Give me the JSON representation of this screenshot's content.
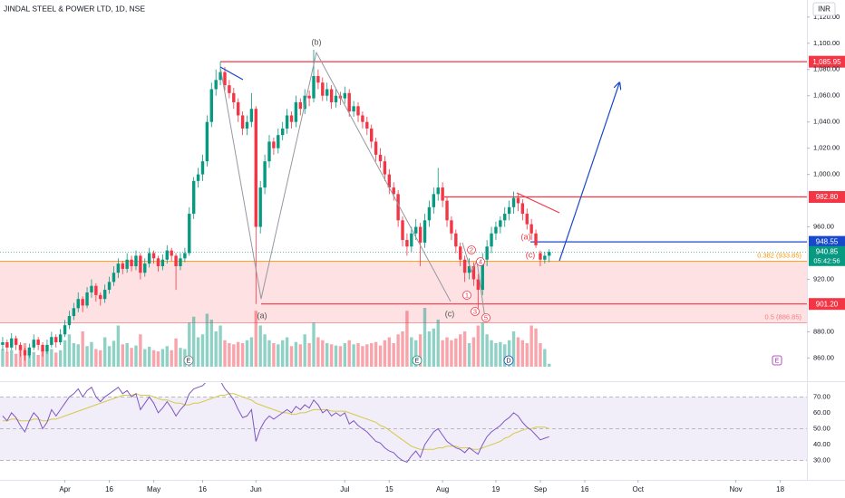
{
  "header": {
    "title": "JINDAL STEEL & POWER LTD, 1D, NSE",
    "currency": "INR"
  },
  "chart_data": {
    "type": "candlestick",
    "candles": [
      [
        870,
        876,
        866,
        872
      ],
      [
        872,
        874,
        864,
        868
      ],
      [
        868,
        879,
        866,
        875
      ],
      [
        875,
        877,
        866,
        870
      ],
      [
        870,
        872,
        861,
        866
      ],
      [
        866,
        868,
        858,
        862
      ],
      [
        862,
        871,
        860,
        868
      ],
      [
        868,
        878,
        866,
        874
      ],
      [
        874,
        876,
        866,
        870
      ],
      [
        870,
        872,
        861,
        865
      ],
      [
        865,
        874,
        863,
        870
      ],
      [
        870,
        880,
        868,
        876
      ],
      [
        876,
        878,
        868,
        872
      ],
      [
        872,
        882,
        870,
        878
      ],
      [
        878,
        889,
        876,
        885
      ],
      [
        885,
        896,
        882,
        892
      ],
      [
        892,
        902,
        889,
        898
      ],
      [
        898,
        910,
        895,
        905
      ],
      [
        905,
        907,
        895,
        900
      ],
      [
        900,
        914,
        898,
        910
      ],
      [
        910,
        920,
        906,
        915
      ],
      [
        915,
        917,
        903,
        908
      ],
      [
        908,
        910,
        900,
        905
      ],
      [
        905,
        916,
        902,
        912
      ],
      [
        912,
        922,
        909,
        918
      ],
      [
        918,
        930,
        915,
        925
      ],
      [
        925,
        936,
        921,
        932
      ],
      [
        932,
        934,
        924,
        928
      ],
      [
        928,
        940,
        925,
        935
      ],
      [
        935,
        938,
        926,
        930
      ],
      [
        930,
        942,
        927,
        938
      ],
      [
        938,
        940,
        920,
        925
      ],
      [
        925,
        936,
        922,
        932
      ],
      [
        932,
        944,
        929,
        940
      ],
      [
        940,
        942,
        932,
        936
      ],
      [
        936,
        938,
        926,
        930
      ],
      [
        930,
        939,
        927,
        935
      ],
      [
        935,
        946,
        932,
        942
      ],
      [
        942,
        944,
        934,
        938
      ],
      [
        938,
        940,
        912,
        930
      ],
      [
        930,
        940,
        927,
        936
      ],
      [
        936,
        944,
        933,
        940
      ],
      [
        940,
        975,
        938,
        970
      ],
      [
        970,
        998,
        966,
        995
      ],
      [
        995,
        1005,
        990,
        1000
      ],
      [
        1000,
        1015,
        995,
        1010
      ],
      [
        1010,
        1045,
        1006,
        1040
      ],
      [
        1040,
        1070,
        1036,
        1065
      ],
      [
        1065,
        1080,
        1060,
        1072
      ],
      [
        1072,
        1085.95,
        1068,
        1078
      ],
      [
        1078,
        1082,
        1064,
        1068
      ],
      [
        1068,
        1072,
        1058,
        1062
      ],
      [
        1062,
        1066,
        1050,
        1055
      ],
      [
        1055,
        1058,
        1040,
        1045
      ],
      [
        1045,
        1048,
        1030,
        1035
      ],
      [
        1035,
        1045,
        1030,
        1040
      ],
      [
        1040,
        1062,
        1036,
        1050
      ],
      [
        1050,
        1052,
        901.2,
        960
      ],
      [
        960,
        995,
        955,
        990
      ],
      [
        990,
        1015,
        985,
        1010
      ],
      [
        1010,
        1030,
        1005,
        1025
      ],
      [
        1025,
        1028,
        1015,
        1020
      ],
      [
        1020,
        1035,
        1016,
        1030
      ],
      [
        1030,
        1040,
        1026,
        1035
      ],
      [
        1035,
        1050,
        1031,
        1045
      ],
      [
        1045,
        1048,
        1035,
        1040
      ],
      [
        1040,
        1060,
        1036,
        1055
      ],
      [
        1055,
        1058,
        1045,
        1050
      ],
      [
        1050,
        1065,
        1046,
        1060
      ],
      [
        1060,
        1064,
        1052,
        1058
      ],
      [
        1058,
        1095,
        1055,
        1075
      ],
      [
        1075,
        1080,
        1065,
        1070
      ],
      [
        1070,
        1074,
        1056,
        1060
      ],
      [
        1060,
        1070,
        1056,
        1065
      ],
      [
        1065,
        1068,
        1050,
        1055
      ],
      [
        1055,
        1065,
        1051,
        1060
      ],
      [
        1060,
        1063,
        1053,
        1058
      ],
      [
        1058,
        1067,
        1054,
        1062
      ],
      [
        1062,
        1065,
        1044,
        1048
      ],
      [
        1048,
        1056,
        1044,
        1052
      ],
      [
        1052,
        1055,
        1040,
        1045
      ],
      [
        1045,
        1048,
        1035,
        1040
      ],
      [
        1040,
        1044,
        1030,
        1035
      ],
      [
        1035,
        1038,
        1020,
        1025
      ],
      [
        1025,
        1028,
        1010,
        1015
      ],
      [
        1015,
        1020,
        1005,
        1010
      ],
      [
        1010,
        1014,
        995,
        1000
      ],
      [
        1000,
        1004,
        985,
        990
      ],
      [
        990,
        994,
        980,
        985
      ],
      [
        985,
        988,
        960,
        965
      ],
      [
        965,
        968,
        945,
        950
      ],
      [
        950,
        955,
        938,
        945
      ],
      [
        945,
        960,
        941,
        955
      ],
      [
        955,
        966,
        950,
        960
      ],
      [
        960,
        963,
        930,
        948
      ],
      [
        948,
        970,
        944,
        965
      ],
      [
        965,
        980,
        960,
        975
      ],
      [
        975,
        990,
        970,
        985
      ],
      [
        985,
        1005,
        980,
        990
      ],
      [
        990,
        994,
        975,
        980
      ],
      [
        980,
        983,
        960,
        965
      ],
      [
        965,
        968,
        950,
        955
      ],
      [
        955,
        958,
        940,
        945
      ],
      [
        945,
        948,
        930,
        935
      ],
      [
        935,
        938,
        918,
        925
      ],
      [
        925,
        936,
        920,
        930
      ],
      [
        930,
        933,
        915,
        920
      ],
      [
        920,
        924,
        898,
        912
      ],
      [
        912,
        940,
        908,
        935
      ],
      [
        935,
        950,
        930,
        945
      ],
      [
        945,
        960,
        940,
        955
      ],
      [
        955,
        964,
        950,
        960
      ],
      [
        960,
        968,
        955,
        965
      ],
      [
        965,
        975,
        960,
        970
      ],
      [
        970,
        980,
        965,
        975
      ],
      [
        975,
        987,
        970,
        982
      ],
      [
        982,
        985,
        972,
        978
      ],
      [
        978,
        981,
        965,
        970
      ],
      [
        970,
        974,
        958,
        962
      ],
      [
        962,
        966,
        950,
        955
      ],
      [
        955,
        958,
        944,
        946
      ],
      [
        940,
        942,
        930,
        935
      ],
      [
        935,
        941,
        932,
        938
      ],
      [
        938,
        943,
        933,
        940.85
      ]
    ],
    "volume": [
      30,
      25,
      28,
      22,
      35,
      40,
      28,
      25,
      20,
      32,
      26,
      30,
      24,
      28,
      45,
      55,
      40,
      38,
      60,
      35,
      42,
      30,
      28,
      50,
      35,
      44,
      70,
      38,
      40,
      32,
      36,
      55,
      30,
      34,
      28,
      26,
      30,
      35,
      28,
      48,
      32,
      30,
      75,
      85,
      50,
      55,
      90,
      80,
      60,
      70,
      45,
      40,
      38,
      42,
      40,
      45,
      50,
      95,
      70,
      55,
      45,
      40,
      38,
      45,
      50,
      35,
      42,
      38,
      55,
      40,
      75,
      50,
      45,
      40,
      38,
      36,
      35,
      40,
      45,
      38,
      40,
      35,
      38,
      40,
      42,
      36,
      45,
      50,
      40,
      55,
      60,
      95,
      50,
      45,
      55,
      100,
      60,
      65,
      80,
      45,
      50,
      45,
      48,
      55,
      60,
      40,
      50,
      70,
      75,
      55,
      45,
      40,
      42,
      38,
      45,
      60,
      50,
      45,
      40,
      70,
      65,
      40,
      30,
      5
    ],
    "colors": {
      "up": "#089981",
      "down": "#f23645"
    },
    "ylim": [
      843,
      1133
    ],
    "yticks": [
      {
        "value": 860,
        "label": "860.00"
      },
      {
        "value": 880,
        "label": "880.00"
      },
      {
        "value": 920,
        "label": "920.00"
      },
      {
        "value": 960,
        "label": "960.00"
      },
      {
        "value": 1000,
        "label": "1,000.00"
      },
      {
        "value": 1020,
        "label": "1,020.00"
      },
      {
        "value": 1040,
        "label": "1,040.00"
      },
      {
        "value": 1060,
        "label": "1,060.00"
      },
      {
        "value": 1080,
        "label": "1,080.00"
      },
      {
        "value": 1100,
        "label": "1,100.00"
      },
      {
        "value": 1120,
        "label": "1,120.00"
      }
    ],
    "xlim": [
      -0.6,
      181
    ],
    "xticks": [
      {
        "value": 14,
        "label": "Apr"
      },
      {
        "value": 24,
        "label": "16"
      },
      {
        "value": 34,
        "label": "May"
      },
      {
        "value": 45,
        "label": "16"
      },
      {
        "value": 57,
        "label": "Jun"
      },
      {
        "value": 77,
        "label": "Jul"
      },
      {
        "value": 87,
        "label": "15"
      },
      {
        "value": 99,
        "label": "Aug"
      },
      {
        "value": 111,
        "label": "19"
      },
      {
        "value": 121,
        "label": "Sep"
      },
      {
        "value": 131,
        "label": "16"
      },
      {
        "value": 143,
        "label": "Oct"
      },
      {
        "value": 165,
        "label": "Nov"
      },
      {
        "value": 175,
        "label": "18"
      }
    ],
    "levels": [
      {
        "value": 1085.95,
        "label": "1,085.95",
        "color": "#f23645"
      },
      {
        "value": 982.8,
        "label": "982.80",
        "color": "#f23645"
      },
      {
        "value": 948.55,
        "color": "#1848cc"
      },
      {
        "value": 901.2,
        "label": "901.20",
        "color": "#f23645"
      }
    ],
    "fib": [
      {
        "value": 933.85,
        "label": "0.382 (933.85)",
        "color": "#ff9800"
      },
      {
        "value": 886.85,
        "label": "0.5 (886.85)",
        "color": "#f77c80"
      }
    ],
    "last": {
      "value": 940.85,
      "countdown": "05:42:56",
      "color": "#089981"
    },
    "annotations": [
      "(b)",
      "(a)",
      "(c)",
      "(a)",
      "(c)",
      "1",
      "2",
      "3",
      "4",
      "5"
    ],
    "events": [
      "E",
      "E",
      "D",
      "E"
    ]
  },
  "rsi": {
    "type": "line",
    "values": [
      58,
      55,
      60,
      57,
      52,
      48,
      55,
      60,
      57,
      50,
      54,
      62,
      58,
      62,
      66,
      70,
      72,
      75,
      70,
      74,
      76,
      70,
      67,
      70,
      72,
      74,
      76,
      72,
      74,
      70,
      72,
      62,
      66,
      70,
      66,
      60,
      63,
      67,
      63,
      58,
      62,
      65,
      72,
      75,
      76,
      77,
      80,
      82,
      82,
      80,
      75,
      72,
      68,
      62,
      57,
      58,
      62,
      42,
      50,
      55,
      58,
      56,
      58,
      60,
      62,
      60,
      64,
      62,
      65,
      63,
      68,
      65,
      60,
      62,
      58,
      60,
      58,
      60,
      53,
      55,
      52,
      50,
      48,
      45,
      42,
      41,
      38,
      36,
      35,
      32,
      30,
      29,
      33,
      36,
      32,
      40,
      44,
      48,
      50,
      46,
      42,
      40,
      38,
      37,
      35,
      38,
      36,
      34,
      40,
      45,
      48,
      50,
      52,
      55,
      57,
      60,
      58,
      54,
      51,
      49,
      46,
      43,
      44,
      45
    ],
    "ma": [
      55,
      55,
      56,
      56,
      55,
      55,
      55,
      56,
      56,
      55,
      55,
      56,
      56,
      57,
      58,
      59,
      60,
      61,
      62,
      63,
      64,
      65,
      66,
      67,
      68,
      69,
      70,
      71,
      71,
      71,
      72,
      71,
      71,
      71,
      70,
      69,
      68,
      68,
      67,
      66,
      66,
      65,
      65,
      66,
      66,
      67,
      68,
      69,
      70,
      71,
      71,
      72,
      72,
      71,
      70,
      69,
      68,
      66,
      65,
      64,
      63,
      62,
      61,
      60,
      60,
      59,
      59,
      60,
      60,
      61,
      62,
      62,
      62,
      62,
      61,
      61,
      61,
      61,
      60,
      59,
      58,
      57,
      56,
      55,
      54,
      52,
      51,
      49,
      47,
      45,
      43,
      41,
      39,
      38,
      37,
      37,
      37,
      37,
      38,
      38,
      39,
      39,
      39,
      38,
      38,
      38,
      37,
      37,
      38,
      39,
      40,
      41,
      42,
      44,
      45,
      47,
      48,
      49,
      50,
      50,
      51,
      51,
      51,
      50
    ],
    "color": "#7e57c2",
    "ma_color": "#d4c94a",
    "ylim": [
      20.7,
      78.7
    ],
    "yticks": [
      {
        "value": 30,
        "label": "30.00"
      },
      {
        "value": 40,
        "label": "40.00"
      },
      {
        "value": 50,
        "label": "50.00"
      },
      {
        "value": 60,
        "label": "60.00"
      },
      {
        "value": 70,
        "label": "70.00"
      }
    ]
  }
}
